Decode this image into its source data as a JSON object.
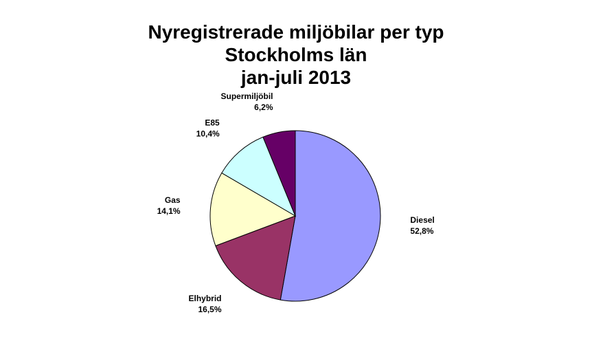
{
  "chart_data": {
    "type": "pie",
    "title_lines": [
      "Nyregistrerade miljöbilar per typ",
      "Stockholms län",
      "jan-juli 2013"
    ],
    "slices": [
      {
        "name": "Diesel",
        "value": 52.8,
        "label": "52,8%",
        "color": "#9999FF"
      },
      {
        "name": "Elhybrid",
        "value": 16.5,
        "label": "16,5%",
        "color": "#993366"
      },
      {
        "name": "Gas",
        "value": 14.1,
        "label": "14,1%",
        "color": "#FFFFCC"
      },
      {
        "name": "E85",
        "value": 10.4,
        "label": "10,4%",
        "color": "#CCFFFF"
      },
      {
        "name": "Supermiljöbil",
        "value": 6.2,
        "label": "6,2%",
        "color": "#660066"
      }
    ],
    "start_angle": "12 o'clock, clockwise",
    "legend": "none",
    "outline_color": "#000000"
  }
}
